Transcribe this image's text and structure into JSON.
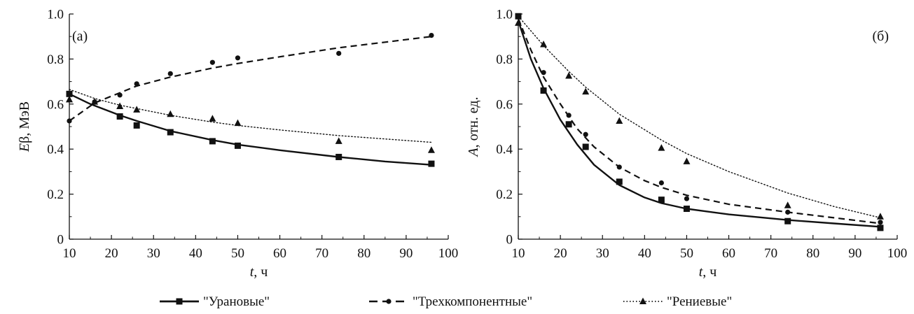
{
  "legend": {
    "placement": "bottom-center",
    "entries": [
      {
        "label": "\"Урановые\"",
        "line_style": "solid",
        "marker": "square"
      },
      {
        "label": "\"Трехкомпонентные\"",
        "line_style": "dashed",
        "marker": "circle"
      },
      {
        "label": "\"Рениевые\"",
        "line_style": "dotted",
        "marker": "triangle"
      }
    ]
  },
  "chart_data": [
    {
      "type": "scatter",
      "panel_label": "(а)",
      "xlabel_italic": "t",
      "xlabel_rest": ", ч",
      "ylabel_italic": "E",
      "ylabel_rest": "β, МэВ",
      "xlim": [
        10,
        100
      ],
      "ylim": [
        0,
        1.0
      ],
      "xticks": [
        "10",
        "20",
        "30",
        "40",
        "50",
        "60",
        "70",
        "80",
        "90",
        "100"
      ],
      "yticks": [
        "0",
        "0.2",
        "0.4",
        "0.6",
        "0.8",
        "1.0"
      ],
      "grid": false,
      "series": [
        {
          "name": "\"Урановые\"",
          "marker": "square",
          "line_style": "solid",
          "x": [
            10,
            22,
            26,
            34,
            44,
            50,
            74,
            96
          ],
          "y": [
            0.645,
            0.545,
            0.505,
            0.475,
            0.435,
            0.415,
            0.365,
            0.335
          ],
          "fit_x": [
            10,
            15,
            22,
            26,
            34,
            44,
            50,
            60,
            74,
            85,
            96
          ],
          "fit_y": [
            0.645,
            0.6,
            0.55,
            0.525,
            0.48,
            0.44,
            0.42,
            0.395,
            0.365,
            0.345,
            0.33
          ]
        },
        {
          "name": "\"Трехкомпонентные\"",
          "marker": "circle",
          "line_style": "dashed",
          "x": [
            10,
            16,
            22,
            26,
            34,
            44,
            50,
            74,
            96
          ],
          "y": [
            0.525,
            0.61,
            0.64,
            0.69,
            0.735,
            0.785,
            0.805,
            0.825,
            0.905
          ],
          "fit_x": [
            10,
            13,
            16,
            20,
            26,
            34,
            44,
            50,
            60,
            74,
            85,
            96
          ],
          "fit_y": [
            0.525,
            0.565,
            0.605,
            0.635,
            0.68,
            0.72,
            0.76,
            0.78,
            0.81,
            0.85,
            0.875,
            0.9
          ]
        },
        {
          "name": "\"Рениевые\"",
          "marker": "triangle",
          "line_style": "dotted",
          "x": [
            10,
            16,
            22,
            26,
            34,
            44,
            50,
            74,
            96
          ],
          "y": [
            0.62,
            0.61,
            0.59,
            0.575,
            0.555,
            0.535,
            0.515,
            0.435,
            0.395
          ],
          "fit_x": [
            10,
            16,
            22,
            26,
            34,
            44,
            50,
            60,
            74,
            85,
            96
          ],
          "fit_y": [
            0.665,
            0.625,
            0.595,
            0.58,
            0.55,
            0.52,
            0.505,
            0.485,
            0.46,
            0.445,
            0.43
          ]
        }
      ]
    },
    {
      "type": "scatter",
      "panel_label": "(б)",
      "xlabel_italic": "t",
      "xlabel_rest": ", ч",
      "ylabel_italic": "A",
      "ylabel_rest": ", отн. ед.",
      "xlim": [
        10,
        100
      ],
      "ylim": [
        0,
        1.0
      ],
      "xticks": [
        "10",
        "20",
        "30",
        "40",
        "50",
        "60",
        "70",
        "80",
        "90",
        "100"
      ],
      "yticks": [
        "0",
        "0.2",
        "0.4",
        "0.6",
        "0.8",
        "1.0"
      ],
      "grid": false,
      "series": [
        {
          "name": "\"Урановые\"",
          "marker": "square",
          "line_style": "solid",
          "x": [
            10,
            16,
            22,
            26,
            34,
            44,
            50,
            74,
            96
          ],
          "y": [
            0.99,
            0.66,
            0.51,
            0.41,
            0.255,
            0.175,
            0.135,
            0.08,
            0.05
          ],
          "fit_x": [
            10,
            13,
            16,
            20,
            24,
            28,
            34,
            40,
            44,
            50,
            60,
            74,
            85,
            96
          ],
          "fit_y": [
            0.97,
            0.8,
            0.67,
            0.53,
            0.42,
            0.33,
            0.24,
            0.185,
            0.16,
            0.135,
            0.11,
            0.085,
            0.07,
            0.055
          ]
        },
        {
          "name": "\"Трехкомпонентные\"",
          "marker": "circle",
          "line_style": "dashed",
          "x": [
            10,
            16,
            22,
            26,
            34,
            44,
            50,
            74,
            96
          ],
          "y": [
            0.99,
            0.74,
            0.55,
            0.465,
            0.32,
            0.25,
            0.18,
            0.12,
            0.075
          ],
          "fit_x": [
            10,
            13,
            16,
            20,
            24,
            28,
            34,
            40,
            44,
            50,
            60,
            74,
            85,
            96
          ],
          "fit_y": [
            0.98,
            0.84,
            0.72,
            0.6,
            0.49,
            0.41,
            0.32,
            0.26,
            0.23,
            0.195,
            0.155,
            0.12,
            0.095,
            0.07
          ]
        },
        {
          "name": "\"Рениевые\"",
          "marker": "triangle",
          "line_style": "dotted",
          "x": [
            10,
            16,
            22,
            26,
            34,
            44,
            50,
            74,
            96
          ],
          "y": [
            0.96,
            0.865,
            0.725,
            0.655,
            0.525,
            0.405,
            0.345,
            0.15,
            0.1
          ],
          "fit_x": [
            10,
            16,
            22,
            26,
            34,
            44,
            50,
            60,
            74,
            85,
            96
          ],
          "fit_y": [
            0.99,
            0.86,
            0.745,
            0.675,
            0.555,
            0.44,
            0.38,
            0.3,
            0.205,
            0.145,
            0.095
          ]
        }
      ]
    }
  ]
}
